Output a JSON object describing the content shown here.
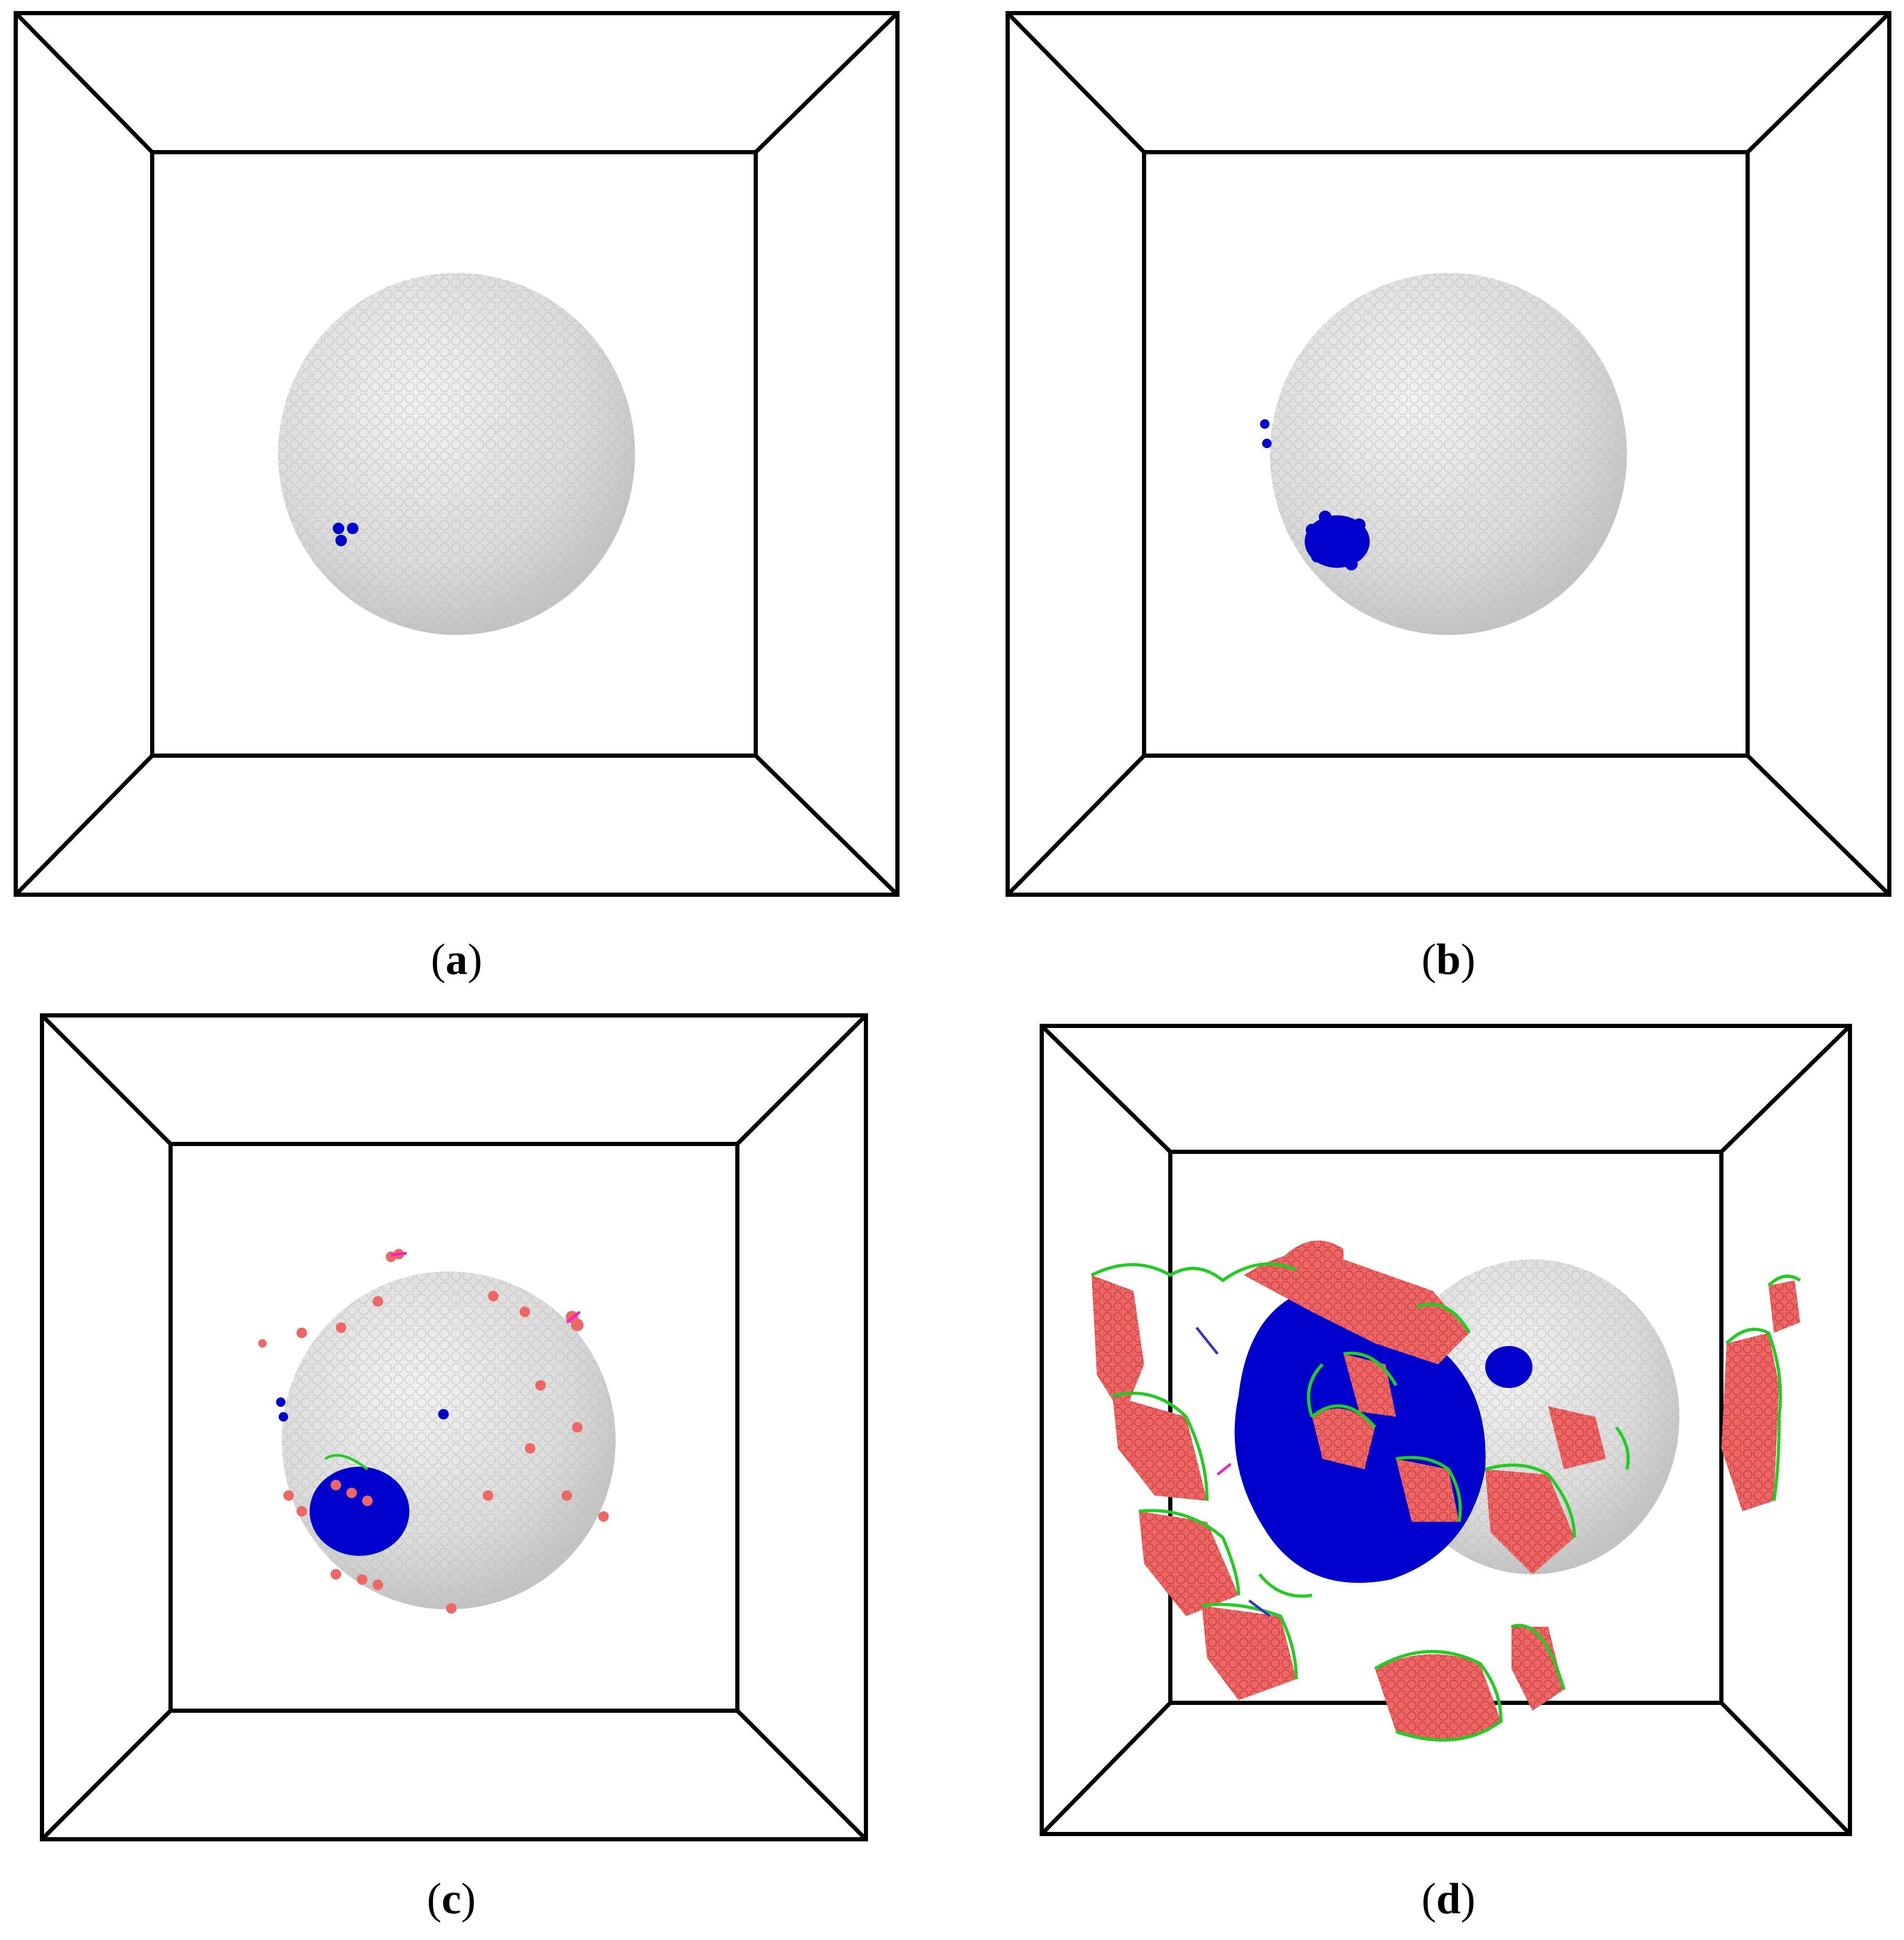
{
  "panels": [
    {
      "id": "a",
      "caption_open": "(",
      "caption_letter": "a",
      "caption_close": ")"
    },
    {
      "id": "b",
      "caption_open": "(",
      "caption_letter": "b",
      "caption_close": ")"
    },
    {
      "id": "c",
      "caption_open": "(",
      "caption_letter": "c",
      "caption_close": ")"
    },
    {
      "id": "d",
      "caption_open": "(",
      "caption_letter": "d",
      "caption_close": ")"
    }
  ],
  "colors": {
    "sphere_atoms": "#d9d9d9",
    "cluster_atoms": "#0000cc",
    "stacking_fault_atoms": "#ee6666",
    "dislocation_lines": "#22cc22",
    "other_dislocation_lines": "#ee22cc",
    "box_edges": "#000000"
  }
}
